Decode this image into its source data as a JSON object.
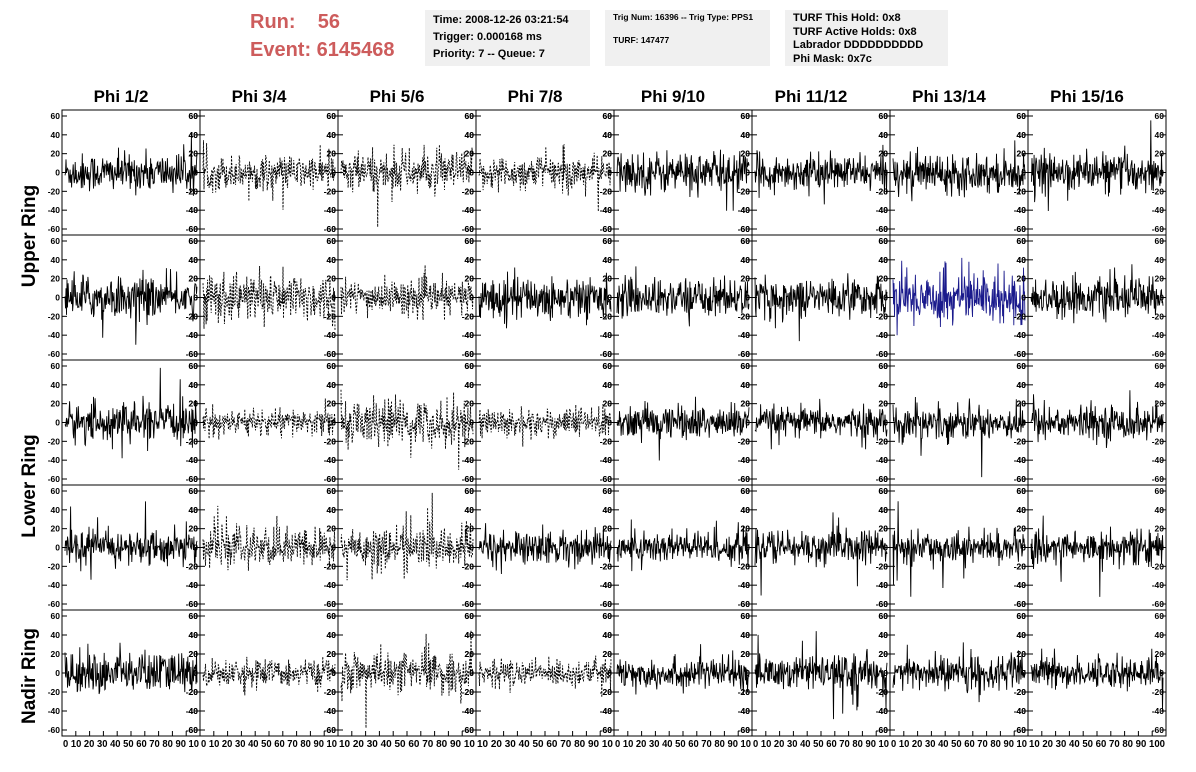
{
  "header": {
    "run_label": "Run:    56",
    "event_label": "Event: 6145468"
  },
  "info_box_1": {
    "time": "Time: 2008-12-26 03:21:54",
    "trigger": "Trigger: 0.000168 ms",
    "priority": "Priority: 7 -- Queue: 7"
  },
  "info_box_2": {
    "trig": "Trig Num: 16396 -- Trig Type: PPS1",
    "turf": "TURF: 147477"
  },
  "info_box_3": {
    "hold": "TURF This Hold: 0x8",
    "active": "TURF Active Holds: 0x8",
    "labrador": "Labrador DDDDDDDDDD",
    "mask": "Phi Mask: 0x7c"
  },
  "phi_labels": [
    "Phi 1/2",
    "Phi 3/4",
    "Phi 5/6",
    "Phi 7/8",
    "Phi 9/10",
    "Phi 11/12",
    "Phi 13/14",
    "Phi 15/16"
  ],
  "ring_labels": [
    "Upper Ring",
    "Lower Ring",
    "Nadir Ring"
  ],
  "colors": {
    "trace": "#000000",
    "highlight": "#1a1a8c"
  },
  "chart_data": {
    "type": "line",
    "rows": 5,
    "cols": 8,
    "ylim": [
      -60,
      60
    ],
    "xlim": [
      0,
      100
    ],
    "y_ticks": [
      -60,
      -40,
      -20,
      0,
      20,
      40,
      60
    ],
    "y_tick_labels": [
      "-60",
      "-40",
      "-20",
      "0",
      "20",
      "40",
      "60"
    ],
    "x_tick_labels": [
      "0",
      "10",
      "20",
      "30",
      "40",
      "50",
      "60",
      "70",
      "80",
      "90",
      "100"
    ],
    "x_axis_labels_per_panel": [
      "0 10 20 30 40 50 60 70 80 90 10",
      "0 10 20 30 40 50 60 70 80 90 10",
      "10 20 30 40 50 60 70 80 90 10",
      "10 20 30 40 50 60 70 80 90 10",
      "0 10 20 30 40 50 60 70 80 90 10",
      "0 10 20 30 40 50 60 70 80 90 10",
      "0 10 20 30 40 50 60 70 80 90 10",
      "10 20 30 40 50 60 70 80 90 100"
    ],
    "samples_per_trace": 260,
    "panel_styles": [
      [
        "solid",
        "dashed",
        "dashed",
        "dashed",
        "solid",
        "solid",
        "solid",
        "solid"
      ],
      [
        "solid",
        "dashed",
        "dashed",
        "solid",
        "solid",
        "solid",
        "highlight",
        "solid"
      ],
      [
        "solid",
        "dashed",
        "dashed",
        "dashed",
        "solid",
        "solid",
        "solid",
        "solid"
      ],
      [
        "solid",
        "dashed",
        "dashed",
        "solid",
        "solid",
        "solid",
        "solid",
        "solid"
      ],
      [
        "solid",
        "dashed",
        "dashed",
        "dashed",
        "solid",
        "solid",
        "solid",
        "solid"
      ]
    ],
    "panel_amplitudes": [
      [
        10,
        9,
        11,
        9,
        11,
        9,
        10,
        10
      ],
      [
        11,
        13,
        9,
        11,
        10,
        10,
        14,
        10
      ],
      [
        10,
        7,
        12,
        8,
        9,
        8,
        9,
        9
      ],
      [
        9,
        10,
        11,
        9,
        9,
        9,
        8,
        9
      ],
      [
        11,
        7,
        10,
        7,
        8,
        9,
        9,
        8
      ]
    ]
  }
}
